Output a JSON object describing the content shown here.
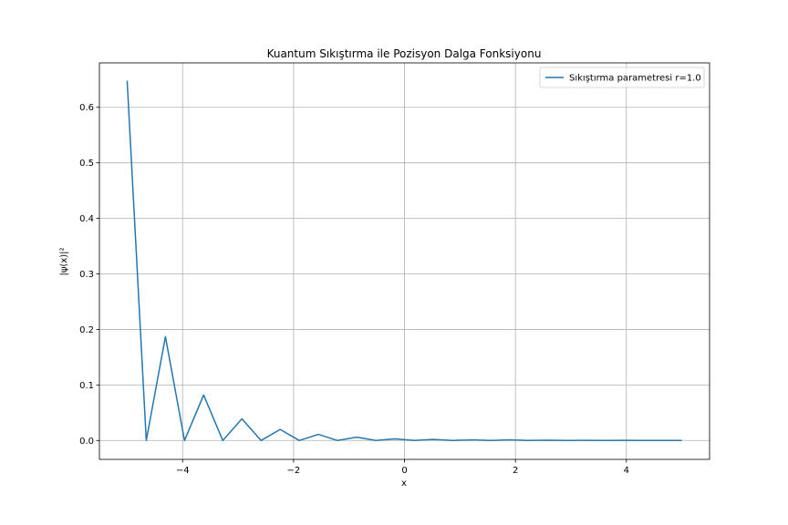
{
  "chart_data": {
    "type": "line",
    "title": "Kuantum Sıkıştırma ile Pozisyon Dalga Fonksiyonu",
    "xlabel": "x",
    "ylabel": "|ψ(x)|²",
    "xlim": [
      -5.5,
      5.5
    ],
    "ylim": [
      -0.034,
      0.68
    ],
    "xticks": [
      -4,
      -2,
      0,
      2,
      4
    ],
    "xtick_labels": [
      "−4",
      "−2",
      "0",
      "2",
      "4"
    ],
    "yticks": [
      0.0,
      0.1,
      0.2,
      0.3,
      0.4,
      0.5,
      0.6
    ],
    "ytick_labels": [
      "0.0",
      "0.1",
      "0.2",
      "0.3",
      "0.4",
      "0.5",
      "0.6"
    ],
    "grid": true,
    "legend_position": "upper-right",
    "series": [
      {
        "name": "Sıkıştırma parametresi r=1.0",
        "color": "#1f77b4",
        "x": [
          -5.0,
          -4.655,
          -4.31,
          -3.966,
          -3.621,
          -3.276,
          -2.931,
          -2.586,
          -2.241,
          -1.897,
          -1.552,
          -1.207,
          -0.862,
          -0.517,
          -0.172,
          0.172,
          0.517,
          0.862,
          1.207,
          1.552,
          1.897,
          2.241,
          2.586,
          2.931,
          3.276,
          3.621,
          3.966,
          4.31,
          4.655,
          5.0
        ],
        "y": [
          0.648,
          0.0,
          0.187,
          0.0,
          0.082,
          0.0,
          0.039,
          0.0,
          0.02,
          0.0,
          0.011,
          0.0,
          0.006,
          0.0,
          0.003,
          0.0,
          0.002,
          0.0,
          0.001,
          0.0,
          0.001,
          0.0,
          0.0005,
          0.0,
          0.0003,
          0.0,
          0.0002,
          0.0,
          0.0001,
          0.0
        ]
      }
    ]
  }
}
